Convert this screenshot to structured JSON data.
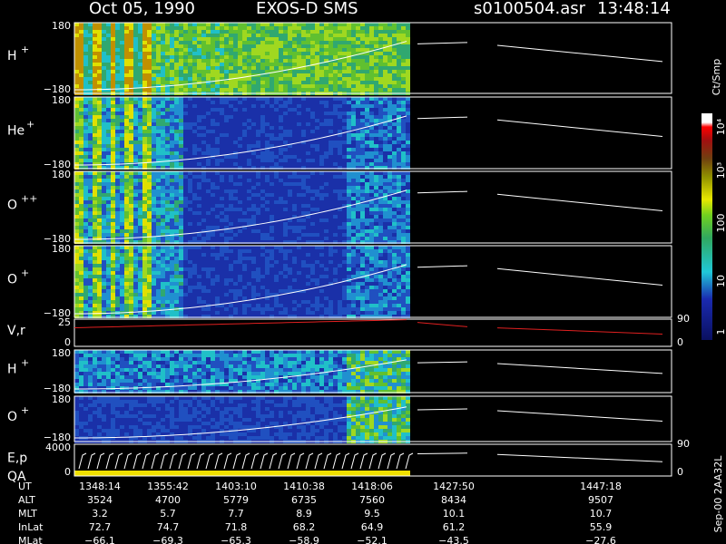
{
  "header": {
    "date": "Oct 05, 1990",
    "instrument": "EXOS-D SMS",
    "file": "s0100504.asr",
    "time": "13:48:14"
  },
  "panels": [
    {
      "label": "H",
      "sup": "+",
      "ticks": [
        "180",
        "−180"
      ]
    },
    {
      "label": "He",
      "sup": "+",
      "ticks": [
        "180",
        "−180"
      ]
    },
    {
      "label": "O",
      "sup": "++",
      "ticks": [
        "180",
        "−180"
      ]
    },
    {
      "label": "O",
      "sup": "+",
      "ticks": [
        "180",
        "−180"
      ]
    },
    {
      "label": "V,r",
      "ticks": [
        "25",
        "0"
      ],
      "right_ticks": [
        "90",
        "0"
      ]
    },
    {
      "label": "H",
      "sup": "+",
      "ticks": [
        "180",
        "−180"
      ]
    },
    {
      "label": "O",
      "sup": "+",
      "ticks": [
        "180",
        "−180"
      ]
    },
    {
      "label": "E,p",
      "label2": "QA",
      "ticks": [
        "4000",
        "0"
      ],
      "right_ticks": [
        "90",
        "0"
      ]
    }
  ],
  "colorbar": {
    "unit": "Ct/Smp",
    "labels": [
      "10⁴",
      "10³",
      "100",
      "10",
      "1"
    ]
  },
  "footer": "Sep-00  2AA32L",
  "table": {
    "row_labels": [
      "UT",
      "ALT",
      "MLT",
      "InLat",
      "MLat"
    ],
    "columns": [
      [
        "1348:14",
        "3524",
        "3.2",
        "72.7",
        "−66.1"
      ],
      [
        "1355:42",
        "4700",
        "5.7",
        "74.7",
        "−69.3"
      ],
      [
        "1403:10",
        "5779",
        "7.7",
        "71.8",
        "−65.3"
      ],
      [
        "1410:38",
        "6735",
        "8.9",
        "68.2",
        "−58.9"
      ],
      [
        "1418:06",
        "7560",
        "9.5",
        "64.9",
        "−52.1"
      ],
      [
        "1427:50",
        "8434",
        "10.1",
        "61.2",
        "−43.5"
      ],
      [
        "1447:18",
        "9507",
        "10.7",
        "55.9",
        "−27.6"
      ]
    ]
  }
}
